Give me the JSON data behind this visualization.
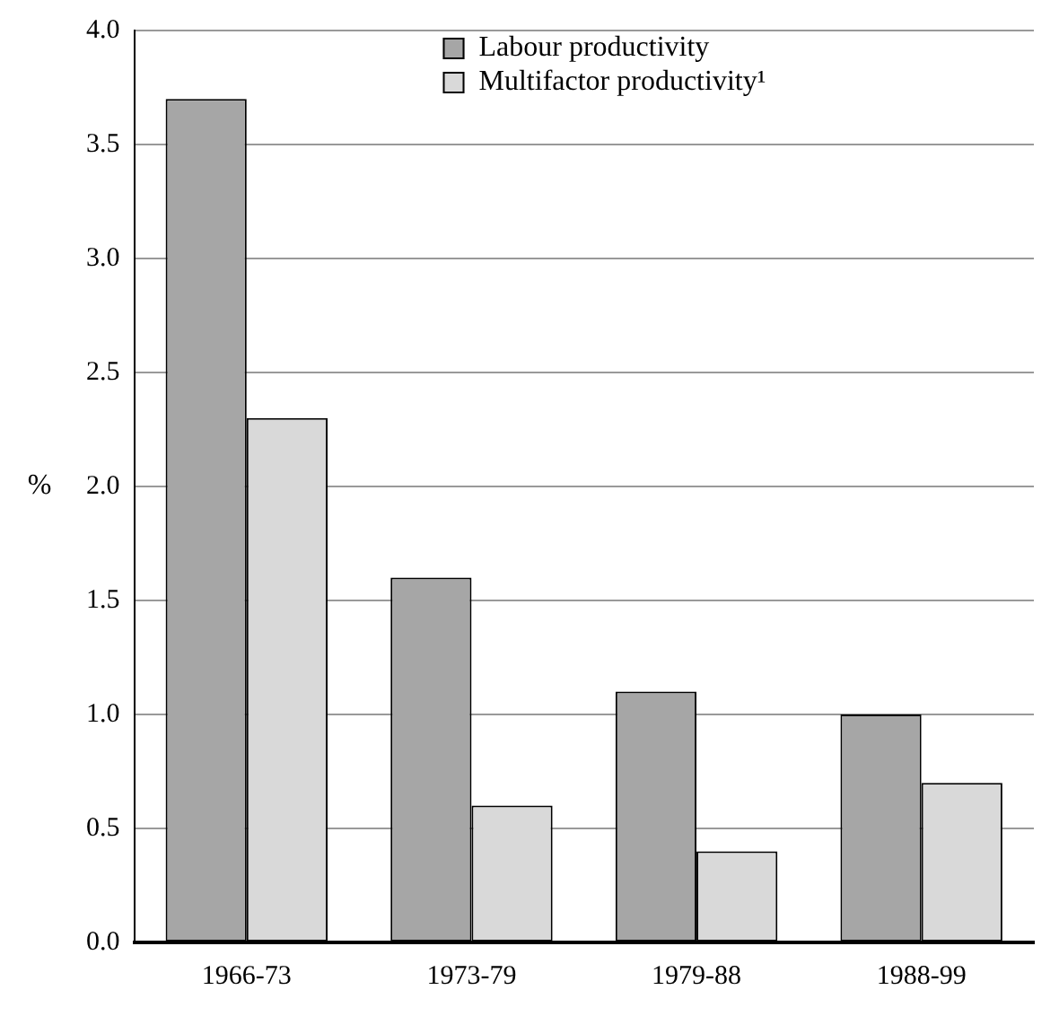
{
  "chart_data": {
    "type": "bar",
    "ylabel": "%",
    "categories": [
      "1966-73",
      "1973-79",
      "1979-88",
      "1988-99"
    ],
    "series": [
      {
        "name": "Labour productivity",
        "color": "#a6a6a6",
        "values": [
          3.7,
          1.6,
          1.1,
          1.0
        ]
      },
      {
        "name": "Multifactor productivity¹",
        "color": "#d9d9d9",
        "values": [
          2.3,
          0.6,
          0.4,
          0.7
        ]
      }
    ],
    "ylim": [
      0,
      4
    ],
    "yticks": [
      {
        "value": 0,
        "label": "0.0"
      },
      {
        "value": 0.5,
        "label": "0.5"
      },
      {
        "value": 1,
        "label": "1.0"
      },
      {
        "value": 1.5,
        "label": "1.5"
      },
      {
        "value": 2,
        "label": "2.0"
      },
      {
        "value": 2.5,
        "label": "2.5"
      },
      {
        "value": 3,
        "label": "3.0"
      },
      {
        "value": 3.5,
        "label": "3.5"
      },
      {
        "value": 4,
        "label": "4.0"
      }
    ],
    "grid": "y",
    "legend": "top right"
  }
}
